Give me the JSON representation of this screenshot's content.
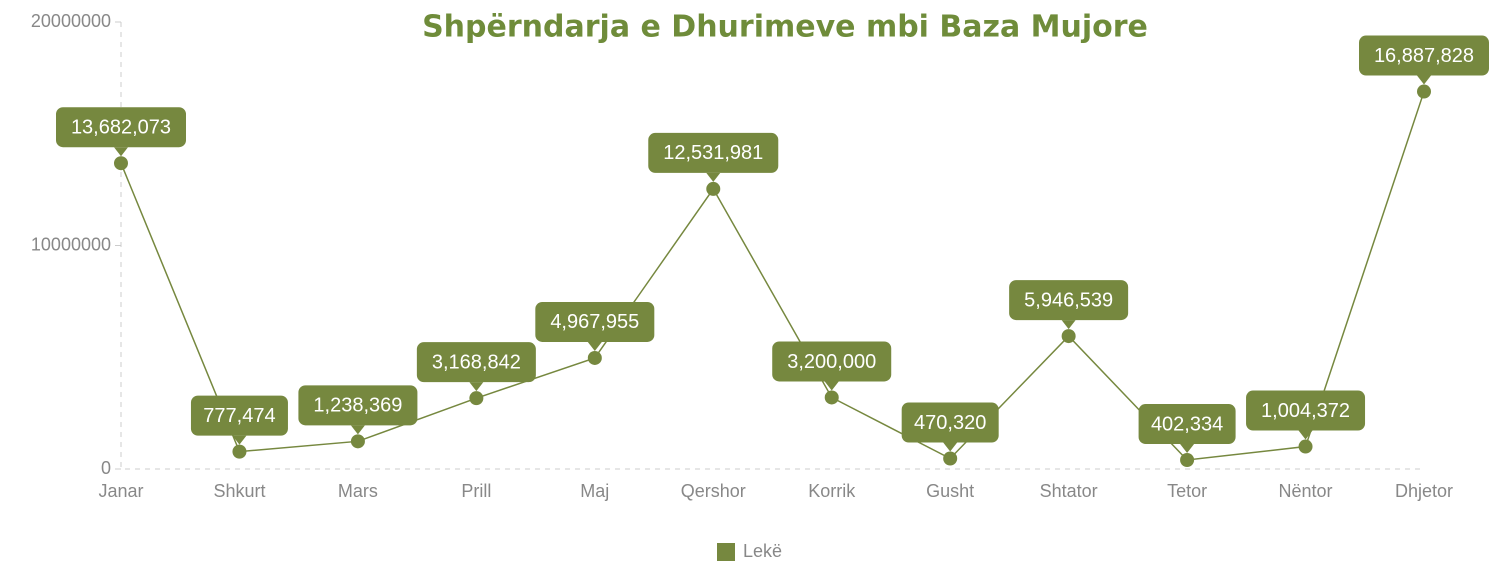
{
  "chart_data": {
    "type": "line",
    "title": "Shpërndarja e Dhurimeve mbi Baza Mujore",
    "categories": [
      "Janar",
      "Shkurt",
      "Mars",
      "Prill",
      "Maj",
      "Qershor",
      "Korrik",
      "Gusht",
      "Shtator",
      "Tetor",
      "Nëntor",
      "Dhjetor"
    ],
    "series": [
      {
        "name": "Lekë",
        "color": "#76883f",
        "values": [
          13682073,
          777474,
          1238369,
          3168842,
          4967955,
          12531981,
          3200000,
          470320,
          5946539,
          402334,
          1004372,
          16887828
        ],
        "value_labels": [
          "13,682,073",
          "777,474",
          "1,238,369",
          "3,168,842",
          "4,967,955",
          "12,531,981",
          "3,200,000",
          "470,320",
          "5,946,539",
          "402,334",
          "1,004,372",
          "16,887,828"
        ]
      }
    ],
    "ylim": [
      0,
      20000000
    ],
    "yticks": [
      0,
      10000000,
      20000000
    ],
    "title_color": "#6f8c3a"
  }
}
